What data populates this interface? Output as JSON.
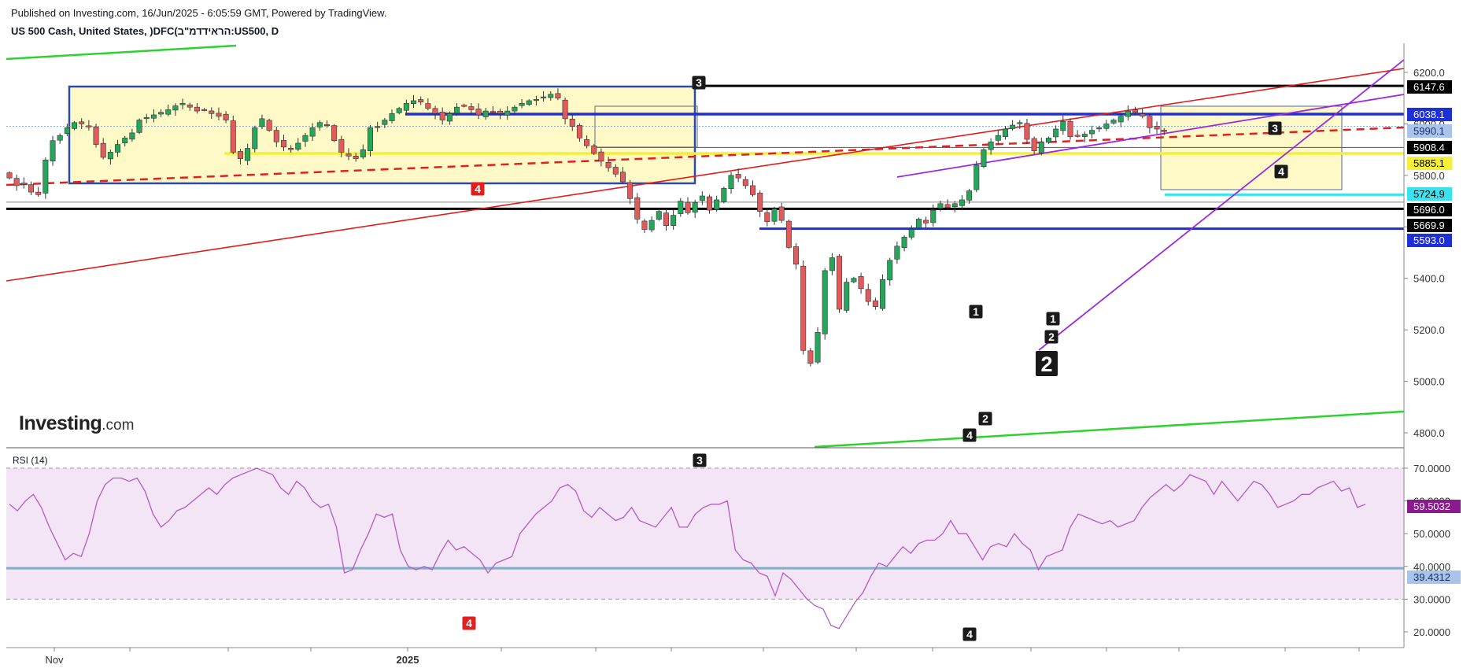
{
  "header": {
    "published": "Published on Investing.com, 16/Jun/2025 - 6:05:59 GMT, Powered by TradingView.",
    "symbol": "US 500 Cash, United States, )DFC(הראידדמ\"ב:US500, D"
  },
  "logo": {
    "brand": "Investing",
    "suffix": ".com"
  },
  "rsi_title": "RSI (14)",
  "colors": {
    "up": "#26a65b",
    "down": "#e05c5c",
    "red_line": "#e31b1b",
    "green_line": "#2ed12e",
    "purple": "#9c27e0",
    "blue": "#2233cc",
    "yellow": "#f5ef3a",
    "cyan": "#38e2f0",
    "box_fill": "#fff9c8",
    "rsi_band": "#f3e5f5",
    "rsi_line": "#b15bc4",
    "rsi_level": "#79b1c9"
  },
  "chart_data": [
    {
      "type": "candlestick",
      "title": "",
      "ylim": [
        4700,
        6260
      ],
      "y_ticks": [
        "6200.0",
        "6000.0",
        "5800.0",
        "5600.0",
        "5400.0",
        "5200.0",
        "5000.0",
        "4800.0"
      ],
      "x_tick_labels": [
        "Nov",
        "2025"
      ],
      "close": [
        5790,
        5760,
        5770,
        5735,
        5725,
        5860,
        5935,
        5955,
        5985,
        6005,
        6000,
        5990,
        5920,
        5870,
        5890,
        5920,
        5945,
        5965,
        6015,
        6025,
        6035,
        6045,
        6055,
        6070,
        6080,
        6065,
        6050,
        6055,
        6040,
        6030,
        6015,
        5890,
        5865,
        5905,
        5985,
        6020,
        5975,
        5930,
        5910,
        5900,
        5925,
        5955,
        5985,
        6005,
        5995,
        5935,
        5890,
        5875,
        5865,
        5900,
        5985,
        5990,
        6015,
        6040,
        6060,
        6080,
        6090,
        6085,
        6060,
        6040,
        6015,
        6040,
        6065,
        6070,
        6055,
        6035,
        6050,
        6045,
        6040,
        6050,
        6065,
        6080,
        6090,
        6095,
        6105,
        6115,
        6100,
        6020,
        5990,
        5945,
        5915,
        5885,
        5855,
        5830,
        5805,
        5775,
        5710,
        5630,
        5590,
        5625,
        5660,
        5605,
        5645,
        5700,
        5655,
        5695,
        5720,
        5665,
        5705,
        5750,
        5800,
        5790,
        5760,
        5725,
        5660,
        5620,
        5670,
        5625,
        5520,
        5455,
        5120,
        5070,
        5190,
        5430,
        5480,
        5280,
        5385,
        5400,
        5360,
        5310,
        5290,
        5395,
        5470,
        5525,
        5560,
        5590,
        5630,
        5615,
        5665,
        5690,
        5675,
        5690,
        5705,
        5740,
        5840,
        5900,
        5930,
        5955,
        5980,
        5995,
        6005,
        5940,
        5895,
        5930,
        5945,
        5980,
        6010,
        5950,
        5955,
        5960,
        5975,
        5985,
        6000,
        6015,
        6030,
        6050,
        6045,
        6030,
        5985,
        5980,
        5970
      ],
      "annotations": [
        {
          "text": "3",
          "kind": "price"
        },
        {
          "text": "4",
          "kind": "price",
          "style": "red"
        },
        {
          "text": "1",
          "kind": "price"
        },
        {
          "text": "2",
          "kind": "price"
        },
        {
          "text": "4",
          "kind": "price"
        },
        {
          "text": "1",
          "kind": "price"
        },
        {
          "text": "2",
          "kind": "price"
        },
        {
          "text": "2",
          "kind": "price",
          "style": "large"
        },
        {
          "text": "3",
          "kind": "price"
        },
        {
          "text": "4",
          "kind": "price"
        }
      ],
      "price_labels": [
        {
          "value": "6147.6",
          "style": "black"
        },
        {
          "value": "6038.1",
          "style": "blue"
        },
        {
          "value": "5990.1",
          "style": "lightblue"
        },
        {
          "value": "5908.4",
          "style": "black"
        },
        {
          "value": "5885.1",
          "style": "yellow"
        },
        {
          "value": "5724.9",
          "style": "cyan"
        },
        {
          "value": "5696.0",
          "style": "black"
        },
        {
          "value": "5669.9",
          "style": "black"
        },
        {
          "value": "5593.0",
          "style": "blue"
        }
      ]
    },
    {
      "type": "line",
      "title": "RSI (14)",
      "ylim": [
        18,
        73
      ],
      "y_ticks": [
        "70.0000",
        "60.0000",
        "50.0000",
        "40.0000",
        "30.0000",
        "20.0000"
      ],
      "levels": [
        70,
        30
      ],
      "value_labels": [
        {
          "value": "59.5032",
          "style": "purple"
        },
        {
          "value": "39.4312",
          "style": "lightblue"
        }
      ],
      "annotations": [
        {
          "text": "3",
          "kind": "rsi"
        },
        {
          "text": "4",
          "kind": "rsi",
          "style": "red"
        },
        {
          "text": "4",
          "kind": "rsi"
        }
      ],
      "values": [
        59,
        57,
        60,
        62,
        58,
        52,
        47,
        42,
        44,
        43,
        50,
        60,
        65,
        67,
        67,
        66,
        67,
        63,
        56,
        52,
        54,
        57,
        58,
        60,
        62,
        64,
        62,
        65,
        67,
        68,
        69,
        70,
        69,
        68,
        64,
        62,
        66,
        64,
        60,
        58,
        59,
        52,
        38,
        39,
        45,
        50,
        56,
        55,
        56,
        45,
        40,
        39,
        40,
        39,
        44,
        48,
        45,
        46,
        44,
        42,
        38,
        41,
        42,
        43,
        50,
        53,
        56,
        58,
        60,
        64,
        65,
        63,
        57,
        55,
        58,
        56,
        54,
        55,
        58,
        54,
        53,
        52,
        55,
        58,
        52,
        52,
        56,
        58,
        59,
        59,
        60,
        45,
        42,
        41,
        38,
        37,
        31,
        38,
        36,
        33,
        30,
        28,
        27,
        22,
        21,
        25,
        29,
        32,
        37,
        41,
        40,
        43,
        46,
        44,
        47,
        48,
        48,
        50,
        54,
        50,
        50,
        46,
        42,
        46,
        47,
        46,
        50,
        47,
        45,
        39,
        43,
        44,
        45,
        52,
        56,
        55,
        54,
        53,
        54,
        52,
        53,
        54,
        58,
        61,
        63,
        65,
        63,
        65,
        68,
        67,
        66,
        62,
        66,
        63,
        60,
        63,
        66,
        65,
        62,
        58,
        59,
        60,
        62,
        62,
        64,
        65,
        66,
        63,
        64,
        58,
        59
      ]
    }
  ]
}
